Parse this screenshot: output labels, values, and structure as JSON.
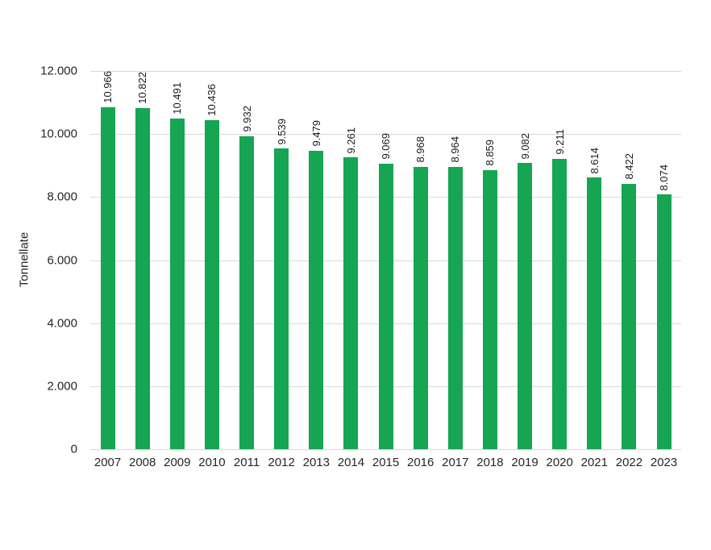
{
  "chart_data": {
    "type": "bar",
    "title": "",
    "xlabel": "",
    "ylabel": "Tonnellate",
    "categories": [
      "2007",
      "2008",
      "2009",
      "2010",
      "2011",
      "2012",
      "2013",
      "2014",
      "2015",
      "2016",
      "2017",
      "2018",
      "2019",
      "2020",
      "2021",
      "2022",
      "2023"
    ],
    "values": [
      10966,
      10822,
      10491,
      10436,
      9932,
      9539,
      9479,
      9261,
      9069,
      8968,
      8964,
      8859,
      9082,
      9211,
      8614,
      8422,
      8074
    ],
    "value_labels": [
      "10.966",
      "10.822",
      "10.491",
      "10.436",
      "9.932",
      "9.539",
      "9.479",
      "9.261",
      "9.069",
      "8.968",
      "8.964",
      "8.859",
      "9.082",
      "9.211",
      "8.614",
      "8.422",
      "8.074"
    ],
    "y_ticks": [
      "12.000",
      "10.000",
      "8.000",
      "6.000",
      "4.000",
      "2.000",
      "0"
    ],
    "ylim": [
      0,
      12000
    ],
    "grid": true,
    "legend": false,
    "bar_color": "#16a552",
    "gridline_color": "#d9d9d9",
    "text_color": "#262626"
  }
}
